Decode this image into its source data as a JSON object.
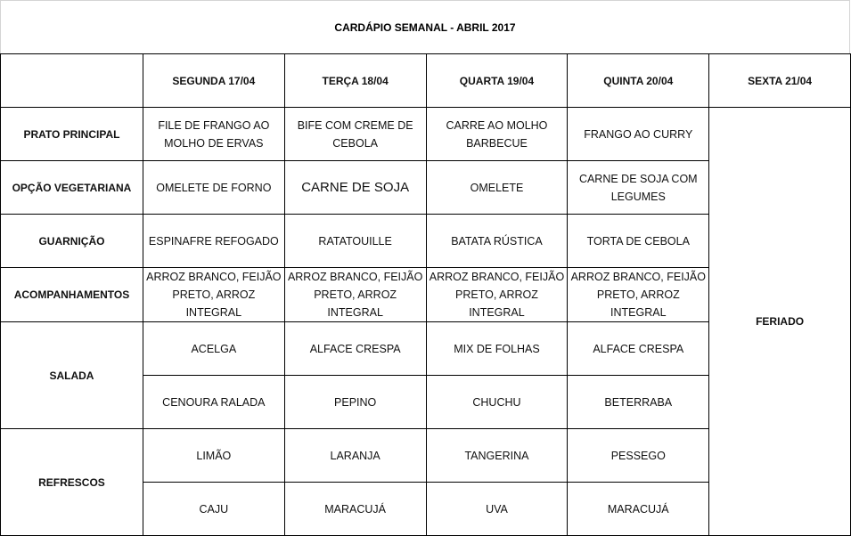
{
  "title": "CARDÁPIO SEMANAL - ABRIL 2017",
  "days": [
    "SEGUNDA 17/04",
    "TERÇA 18/04",
    "QUARTA 19/04",
    "QUINTA 20/04",
    "SEXTA 21/04"
  ],
  "rows": {
    "prato_principal": {
      "label": "PRATO PRINCIPAL",
      "values": [
        "FILE DE FRANGO AO MOLHO DE ERVAS",
        "BIFE COM CREME DE CEBOLA",
        "CARRE AO MOLHO BARBECUE",
        "FRANGO AO CURRY"
      ]
    },
    "opcao_vegetariana": {
      "label": "OPÇÃO VEGETARIANA",
      "values": [
        "OMELETE DE FORNO",
        "CARNE DE SOJA",
        "OMELETE",
        "CARNE DE SOJA COM LEGUMES"
      ]
    },
    "guarnicao": {
      "label": "GUARNIÇÃO",
      "values": [
        "ESPINAFRE REFOGADO",
        "RATATOUILLE",
        "BATATA RÚSTICA",
        "TORTA DE CEBOLA"
      ]
    },
    "acompanhamentos": {
      "label": "ACOMPANHAMENTOS",
      "values": [
        "ARROZ BRANCO, FEIJÃO PRETO, ARROZ INTEGRAL",
        "ARROZ BRANCO, FEIJÃO PRETO, ARROZ INTEGRAL",
        "ARROZ BRANCO, FEIJÃO PRETO, ARROZ INTEGRAL",
        "ARROZ BRANCO, FEIJÃO PRETO, ARROZ INTEGRAL"
      ]
    },
    "salada": {
      "label": "SALADA",
      "values1": [
        "ACELGA",
        "ALFACE CRESPA",
        "MIX DE FOLHAS",
        "ALFACE CRESPA"
      ],
      "values2": [
        "CENOURA RALADA",
        "PEPINO",
        "CHUCHU",
        "BETERRABA"
      ]
    },
    "refrescos": {
      "label": "REFRESCOS",
      "values1": [
        "LIMÃO",
        "LARANJA",
        "TANGERINA",
        "PESSEGO"
      ],
      "values2": [
        "CAJU",
        "MARACUJÁ",
        "UVA",
        "MARACUJÁ"
      ]
    }
  },
  "feriado": "FERIADO"
}
